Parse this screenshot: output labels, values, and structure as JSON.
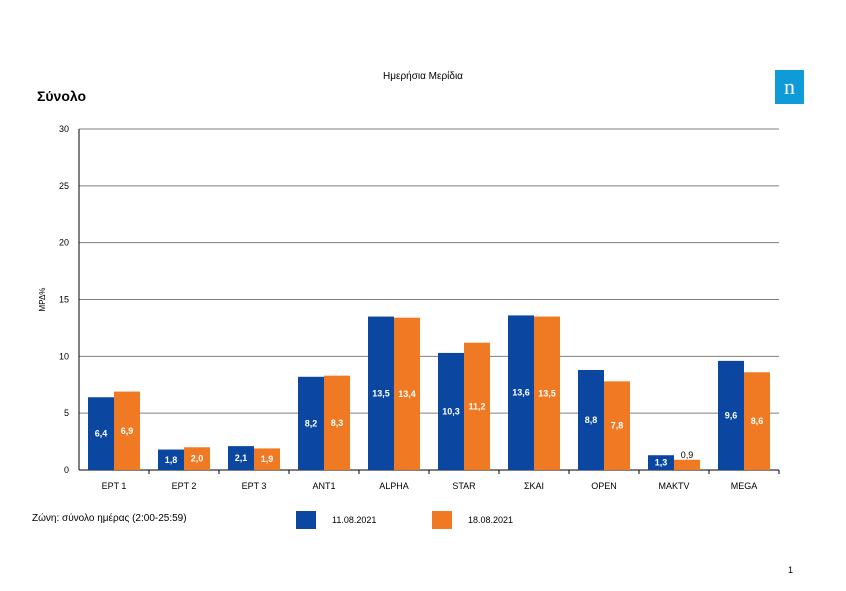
{
  "header": {
    "chart_title": "Ημερήσια Μερίδια",
    "section_title": "Σύνολο",
    "logo_letter": "n"
  },
  "footer": {
    "zone_note": "Ζώνη: σύνολο ημέρας (2:00-25:59)",
    "page_number": "1"
  },
  "colors": {
    "series_1": "#0b47a1",
    "series_2": "#ef7a23",
    "logo_bg": "#0f9bd7",
    "grid": "#7f7f7f"
  },
  "chart_data": {
    "type": "bar",
    "title": "Ημερήσια Μερίδια",
    "ylabel": "ΜΡΔ%",
    "xlabel": "",
    "ylim": [
      0,
      30
    ],
    "yticks": [
      0,
      5,
      10,
      15,
      20,
      25,
      30
    ],
    "grid": true,
    "legend_position": "bottom",
    "categories": [
      "ΕΡΤ 1",
      "ΕΡΤ 2",
      "ΕΡΤ 3",
      "ANT1",
      "ALPHA",
      "STAR",
      "ΣΚΑΙ",
      "OPEN",
      "MAKTV",
      "MEGA"
    ],
    "series": [
      {
        "name": "11.08.2021",
        "values": [
          6.4,
          1.8,
          2.1,
          8.2,
          13.5,
          10.3,
          13.6,
          8.8,
          1.3,
          9.6
        ],
        "labels": [
          "6,4",
          "1,8",
          "2,1",
          "8,2",
          "13,5",
          "10,3",
          "13,6",
          "8,8",
          "1,3",
          "9,6"
        ]
      },
      {
        "name": "18.08.2021",
        "values": [
          6.9,
          2.0,
          1.9,
          8.3,
          13.4,
          11.2,
          13.5,
          7.8,
          0.9,
          8.6
        ],
        "labels": [
          "6,9",
          "2,0",
          "1,9",
          "8,3",
          "13,4",
          "11,2",
          "13,5",
          "7,8",
          "0,9",
          "8,6"
        ]
      }
    ]
  }
}
